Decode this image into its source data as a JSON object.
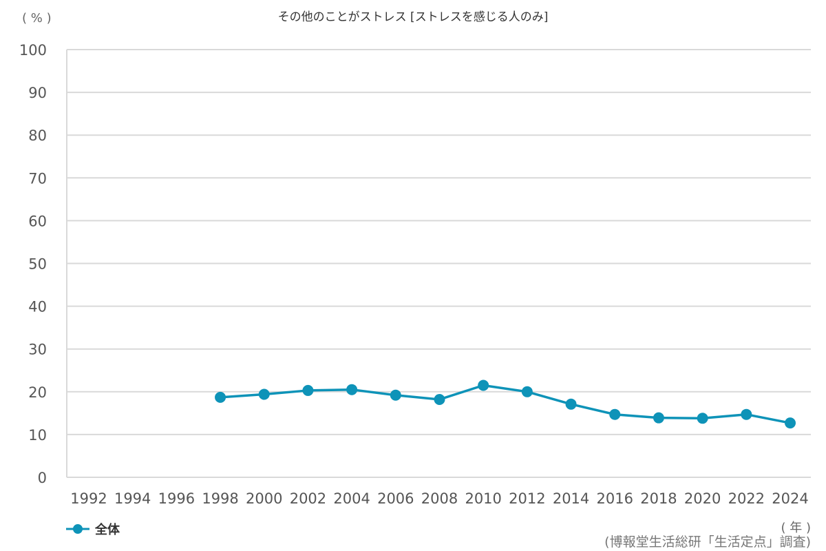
{
  "chart_data": {
    "type": "line",
    "title": "その他のことがストレス [ストレスを感じる人のみ]",
    "ylabel": "( % )",
    "xlabel": "( 年 )",
    "ylim": [
      0,
      100
    ],
    "yticks": [
      0,
      10,
      20,
      30,
      40,
      50,
      60,
      70,
      80,
      90,
      100
    ],
    "grid": true,
    "legend_position": "bottom-left",
    "categories": [
      "1992",
      "1994",
      "1996",
      "1998",
      "2000",
      "2002",
      "2004",
      "2006",
      "2008",
      "2010",
      "2012",
      "2014",
      "2016",
      "2018",
      "2020",
      "2022",
      "2024"
    ],
    "series": [
      {
        "name": "全体",
        "color": "#0e93b8",
        "values": [
          null,
          null,
          null,
          18.7,
          19.4,
          20.3,
          20.5,
          19.2,
          18.2,
          21.5,
          20.0,
          17.1,
          14.7,
          13.9,
          13.8,
          14.7,
          12.7
        ]
      }
    ],
    "source": "(博報堂生活総研「生活定点」調査)"
  },
  "header": {
    "title": "その他のことがストレス [ストレスを感じる人のみ]",
    "y_unit": "( % )"
  },
  "legend": {
    "label": "全体"
  },
  "footer": {
    "x_unit": "( 年 )",
    "source": "(博報堂生活総研「生活定点」調査)"
  },
  "colors": {
    "series": "#0e93b8",
    "grid": "#d9d9d9"
  }
}
